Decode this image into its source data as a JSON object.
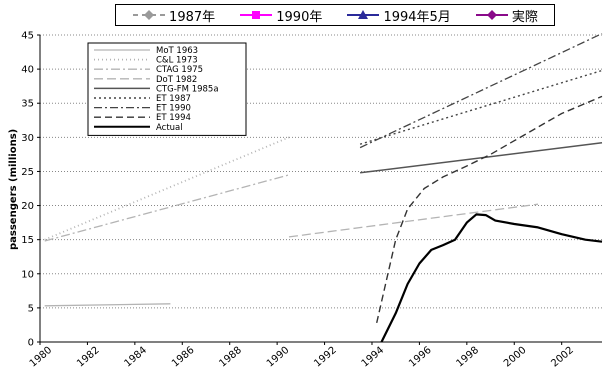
{
  "top_legend": {
    "items": [
      {
        "label": "1987年",
        "color": "#9a9a9a",
        "marker": "diamond",
        "dashed": true
      },
      {
        "label": "1990年",
        "color": "#ff00ff",
        "marker": "square",
        "dashed": false
      },
      {
        "label": "1994年5月",
        "color": "#2a2a9a",
        "marker": "triangle",
        "dashed": false
      },
      {
        "label": "実際",
        "color": "#8a0a8a",
        "marker": "diamond",
        "dashed": false
      }
    ]
  },
  "chart_data": {
    "type": "line",
    "title": "",
    "xlabel": "",
    "ylabel": "passengers (millions)",
    "xlim": [
      1980,
      2003.7
    ],
    "ylim": [
      0,
      45
    ],
    "x_ticks": [
      "1980",
      "1982",
      "1984",
      "1986",
      "1988",
      "1990",
      "1992",
      "1994",
      "1996",
      "1998",
      "2000",
      "2002"
    ],
    "y_ticks": [
      "0",
      "5",
      "10",
      "15",
      "20",
      "25",
      "30",
      "35",
      "40",
      "45"
    ],
    "grid": "horizontal dotted",
    "legend_position": "top-left",
    "series": [
      {
        "name": "MoT 1963",
        "color": "#b4b4b4",
        "dash": "",
        "width": 1.3,
        "points": [
          [
            1980.2,
            5.3
          ],
          [
            1985.5,
            5.6
          ]
        ]
      },
      {
        "name": "C&L 1973",
        "color": "#b4b4b4",
        "dash": "1,3",
        "width": 1.8,
        "points": [
          [
            1980.2,
            15.0
          ],
          [
            1990.5,
            30.0
          ]
        ]
      },
      {
        "name": "CTAG 1975",
        "color": "#b4b4b4",
        "dash": "9,3,2,3",
        "width": 1.3,
        "points": [
          [
            1980.2,
            14.8
          ],
          [
            1990.5,
            24.5
          ]
        ]
      },
      {
        "name": "DoT 1982",
        "color": "#b4b4b4",
        "dash": "9,4",
        "width": 1.3,
        "points": [
          [
            1990.5,
            15.4
          ],
          [
            2001.0,
            20.2
          ]
        ]
      },
      {
        "name": "CTG-FM 1985a",
        "color": "#555555",
        "dash": "",
        "width": 1.5,
        "points": [
          [
            1993.5,
            24.8
          ],
          [
            2003.7,
            29.2
          ]
        ]
      },
      {
        "name": "ET 1987",
        "color": "#444444",
        "dash": "2,3",
        "width": 1.4,
        "points": [
          [
            1993.5,
            29.0
          ],
          [
            2003.7,
            39.8
          ]
        ]
      },
      {
        "name": "ET 1990",
        "color": "#444444",
        "dash": "8,3,2,3",
        "width": 1.3,
        "points": [
          [
            1993.5,
            28.5
          ],
          [
            2003.7,
            45.2
          ]
        ]
      },
      {
        "name": "ET 1994",
        "color": "#333333",
        "dash": "7,4",
        "width": 1.4,
        "points": [
          [
            1994.2,
            2.8
          ],
          [
            1995.0,
            15.0
          ],
          [
            1995.5,
            19.5
          ],
          [
            1996.2,
            22.5
          ],
          [
            1997.0,
            24.2
          ],
          [
            1998.0,
            25.8
          ],
          [
            1999.0,
            27.5
          ],
          [
            2000.0,
            29.5
          ],
          [
            2001.0,
            31.5
          ],
          [
            2002.0,
            33.5
          ],
          [
            2003.7,
            36.0
          ]
        ]
      },
      {
        "name": "Actual",
        "color": "#000000",
        "dash": "",
        "width": 2.2,
        "points": [
          [
            1994.4,
            0.0
          ],
          [
            1995.0,
            4.2
          ],
          [
            1995.5,
            8.5
          ],
          [
            1996.0,
            11.5
          ],
          [
            1996.5,
            13.5
          ],
          [
            1997.0,
            14.2
          ],
          [
            1997.5,
            15.0
          ],
          [
            1998.0,
            17.5
          ],
          [
            1998.4,
            18.7
          ],
          [
            1998.8,
            18.6
          ],
          [
            1999.2,
            17.8
          ],
          [
            2000.0,
            17.3
          ],
          [
            2001.0,
            16.8
          ],
          [
            2002.0,
            15.8
          ],
          [
            2003.0,
            15.0
          ],
          [
            2003.7,
            14.7
          ]
        ]
      }
    ]
  }
}
